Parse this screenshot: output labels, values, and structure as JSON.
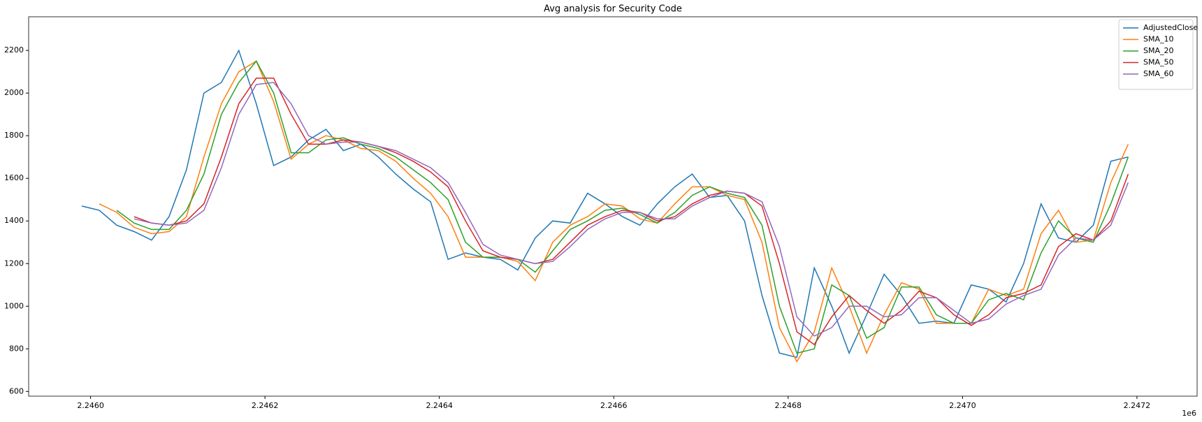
{
  "chart_data": {
    "type": "line",
    "title": "Avg analysis for Security Code",
    "x_offset_text": "1e6",
    "x": [
      2245990,
      2246010,
      2246030,
      2246050,
      2246070,
      2246090,
      2246110,
      2246130,
      2246150,
      2246170,
      2246190,
      2246210,
      2246230,
      2246250,
      2246270,
      2246290,
      2246310,
      2246330,
      2246350,
      2246370,
      2246390,
      2246410,
      2246430,
      2246450,
      2246470,
      2246490,
      2246510,
      2246530,
      2246550,
      2246570,
      2246590,
      2246610,
      2246630,
      2246650,
      2246670,
      2246690,
      2246710,
      2246730,
      2246750,
      2246770,
      2246790,
      2246810,
      2246830,
      2246850,
      2246870,
      2246890,
      2246910,
      2246930,
      2246950,
      2246970,
      2246990,
      2247010,
      2247030,
      2247050,
      2247070,
      2247090,
      2247110,
      2247130,
      2247150,
      2247170,
      2247190
    ],
    "series": [
      {
        "name": "AdjustedClose",
        "color": "#1f77b4",
        "values": [
          1470,
          1450,
          1380,
          1350,
          1310,
          1420,
          1640,
          2000,
          2050,
          2200,
          1950,
          1660,
          1700,
          1780,
          1830,
          1730,
          1760,
          1700,
          1620,
          1550,
          1490,
          1220,
          1250,
          1230,
          1220,
          1170,
          1320,
          1400,
          1390,
          1530,
          1480,
          1420,
          1380,
          1480,
          1560,
          1620,
          1510,
          1520,
          1400,
          1050,
          780,
          760,
          1180,
          1000,
          780,
          960,
          1150,
          1050,
          920,
          930,
          920,
          1100,
          1080,
          1020,
          1200,
          1480,
          1320,
          1300,
          1380,
          1680,
          1700
        ]
      },
      {
        "name": "SMA_10",
        "color": "#ff7f0e",
        "values": [
          null,
          1480,
          1440,
          1370,
          1340,
          1350,
          1420,
          1700,
          1950,
          2100,
          2150,
          1960,
          1690,
          1760,
          1800,
          1780,
          1740,
          1730,
          1680,
          1600,
          1530,
          1420,
          1230,
          1230,
          1230,
          1210,
          1120,
          1300,
          1380,
          1420,
          1480,
          1470,
          1410,
          1390,
          1480,
          1560,
          1560,
          1520,
          1500,
          1300,
          900,
          740,
          880,
          1180,
          1000,
          780,
          960,
          1110,
          1080,
          920,
          920,
          920,
          1080,
          1050,
          1080,
          1340,
          1450,
          1300,
          1310,
          1580,
          1760
        ]
      },
      {
        "name": "SMA_20",
        "color": "#2ca02c",
        "values": [
          null,
          null,
          1450,
          1390,
          1360,
          1360,
          1450,
          1620,
          1900,
          2050,
          2150,
          2000,
          1720,
          1720,
          1780,
          1790,
          1760,
          1740,
          1700,
          1640,
          1580,
          1500,
          1300,
          1230,
          1230,
          1220,
          1160,
          1260,
          1360,
          1400,
          1450,
          1460,
          1430,
          1390,
          1440,
          1520,
          1560,
          1530,
          1510,
          1380,
          1000,
          780,
          800,
          1100,
          1050,
          850,
          900,
          1090,
          1090,
          960,
          920,
          920,
          1030,
          1060,
          1030,
          1250,
          1400,
          1320,
          1300,
          1480,
          1700
        ]
      },
      {
        "name": "SMA_50",
        "color": "#d62728",
        "values": [
          null,
          null,
          null,
          1420,
          1390,
          1380,
          1400,
          1480,
          1700,
          1950,
          2070,
          2070,
          1900,
          1760,
          1760,
          1780,
          1770,
          1750,
          1720,
          1680,
          1630,
          1560,
          1400,
          1260,
          1230,
          1220,
          1200,
          1220,
          1300,
          1380,
          1420,
          1450,
          1440,
          1400,
          1420,
          1480,
          1520,
          1540,
          1530,
          1470,
          1200,
          880,
          820,
          950,
          1050,
          980,
          920,
          980,
          1070,
          1040,
          960,
          910,
          960,
          1040,
          1060,
          1100,
          1280,
          1340,
          1310,
          1400,
          1620
        ]
      },
      {
        "name": "SMA_60",
        "color": "#9467bd",
        "values": [
          null,
          null,
          null,
          1410,
          1390,
          1380,
          1390,
          1450,
          1650,
          1900,
          2040,
          2050,
          1950,
          1800,
          1760,
          1770,
          1770,
          1750,
          1730,
          1690,
          1650,
          1580,
          1440,
          1290,
          1240,
          1220,
          1200,
          1210,
          1280,
          1360,
          1410,
          1440,
          1440,
          1410,
          1410,
          1470,
          1510,
          1540,
          1530,
          1490,
          1280,
          950,
          860,
          900,
          1000,
          1000,
          950,
          960,
          1040,
          1040,
          980,
          920,
          940,
          1010,
          1050,
          1080,
          1240,
          1320,
          1310,
          1380,
          1580
        ]
      }
    ],
    "xlim": [
      2245929,
      2247269
    ],
    "xticks": [
      {
        "value": 2246000,
        "label": "2.2460"
      },
      {
        "value": 2246200,
        "label": "2.2462"
      },
      {
        "value": 2246400,
        "label": "2.2464"
      },
      {
        "value": 2246600,
        "label": "2.2466"
      },
      {
        "value": 2246800,
        "label": "2.2468"
      },
      {
        "value": 2247000,
        "label": "2.2470"
      },
      {
        "value": 2247200,
        "label": "2.2472"
      }
    ],
    "ylim": [
      578,
      2358
    ],
    "yticks": [
      600,
      800,
      1000,
      1200,
      1400,
      1600,
      1800,
      2000,
      2200
    ],
    "legend": "upper right",
    "grid": false
  }
}
